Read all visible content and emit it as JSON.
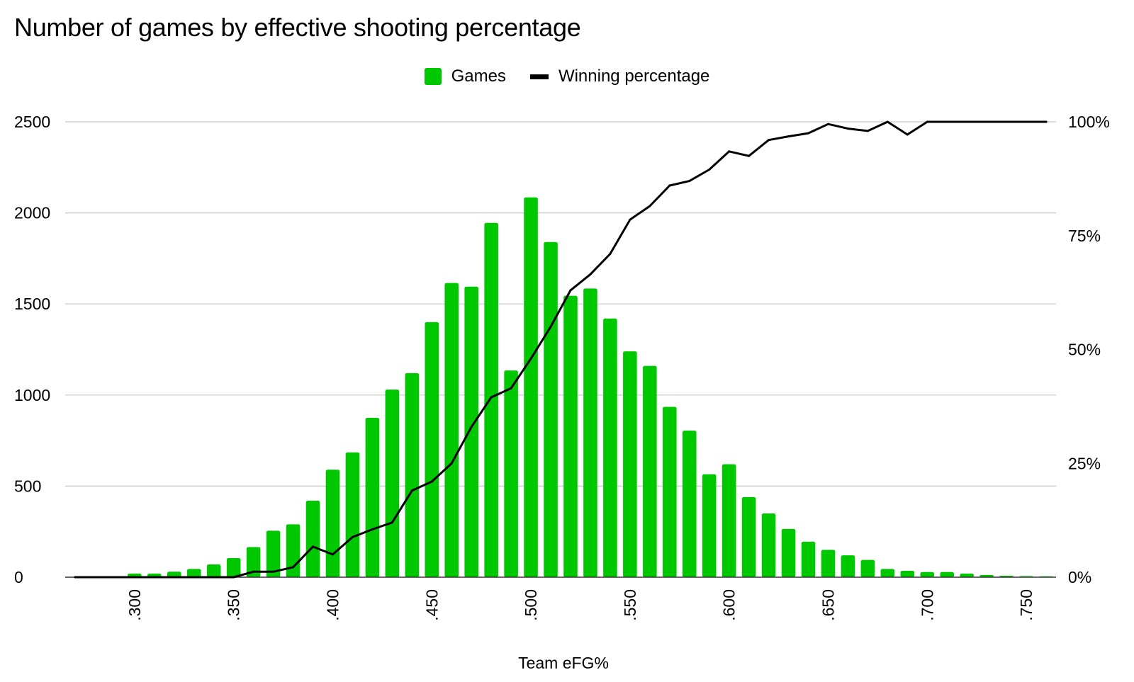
{
  "title": "Number of games by effective shooting percentage",
  "legend": {
    "games_label": "Games",
    "winpct_label": "Winning percentage"
  },
  "colors": {
    "bars": "#00c800",
    "line": "#000000",
    "grid": "#c8c8c8"
  },
  "chart_data": {
    "type": "bar",
    "title": "Number of games by effective shooting percentage",
    "xlabel": "Team eFG%",
    "ylabel": "",
    "y2label": "",
    "legend_position": "top-center",
    "grid": true,
    "x_tick_labels": [
      ".300",
      ".350",
      ".400",
      ".450",
      ".500",
      ".550",
      ".600",
      ".650",
      ".700",
      ".750"
    ],
    "y_tick_labels": [
      "0",
      "500",
      "1000",
      "1500",
      "2000",
      "2500"
    ],
    "y2_tick_labels": [
      "0%",
      "25%",
      "50%",
      "75%",
      "100%"
    ],
    "ylim": [
      0,
      2500
    ],
    "y2lim": [
      0,
      1
    ],
    "x": [
      0.27,
      0.28,
      0.29,
      0.3,
      0.31,
      0.32,
      0.33,
      0.34,
      0.35,
      0.36,
      0.37,
      0.38,
      0.39,
      0.4,
      0.41,
      0.42,
      0.43,
      0.44,
      0.45,
      0.46,
      0.47,
      0.48,
      0.49,
      0.5,
      0.51,
      0.52,
      0.53,
      0.54,
      0.55,
      0.56,
      0.57,
      0.58,
      0.59,
      0.6,
      0.61,
      0.62,
      0.63,
      0.64,
      0.65,
      0.66,
      0.67,
      0.68,
      0.69,
      0.7,
      0.71,
      0.72,
      0.73,
      0.74,
      0.75,
      0.76
    ],
    "series": [
      {
        "name": "Games",
        "type": "bar",
        "axis": "left",
        "values": [
          2,
          2,
          3,
          20,
          20,
          30,
          45,
          70,
          105,
          165,
          255,
          290,
          420,
          590,
          685,
          875,
          1030,
          1120,
          1400,
          1615,
          1595,
          1945,
          1135,
          2085,
          1840,
          1545,
          1585,
          1420,
          1240,
          1160,
          935,
          805,
          565,
          620,
          440,
          350,
          265,
          195,
          150,
          120,
          95,
          45,
          35,
          28,
          28,
          20,
          12,
          8,
          6,
          5
        ]
      },
      {
        "name": "Winning percentage",
        "type": "line",
        "axis": "right",
        "values": [
          0,
          0,
          0,
          0,
          0,
          0,
          0,
          0,
          0,
          0.012,
          0.012,
          0.022,
          0.067,
          0.05,
          0.088,
          0.105,
          0.12,
          0.19,
          0.21,
          0.25,
          0.33,
          0.395,
          0.415,
          0.48,
          0.55,
          0.63,
          0.665,
          0.71,
          0.785,
          0.815,
          0.86,
          0.87,
          0.895,
          0.935,
          0.925,
          0.96,
          0.968,
          0.975,
          0.995,
          0.985,
          0.98,
          1.0,
          0.972,
          1.0,
          1.0,
          1.0,
          1.0,
          1.0,
          1.0,
          1.0
        ]
      }
    ]
  }
}
